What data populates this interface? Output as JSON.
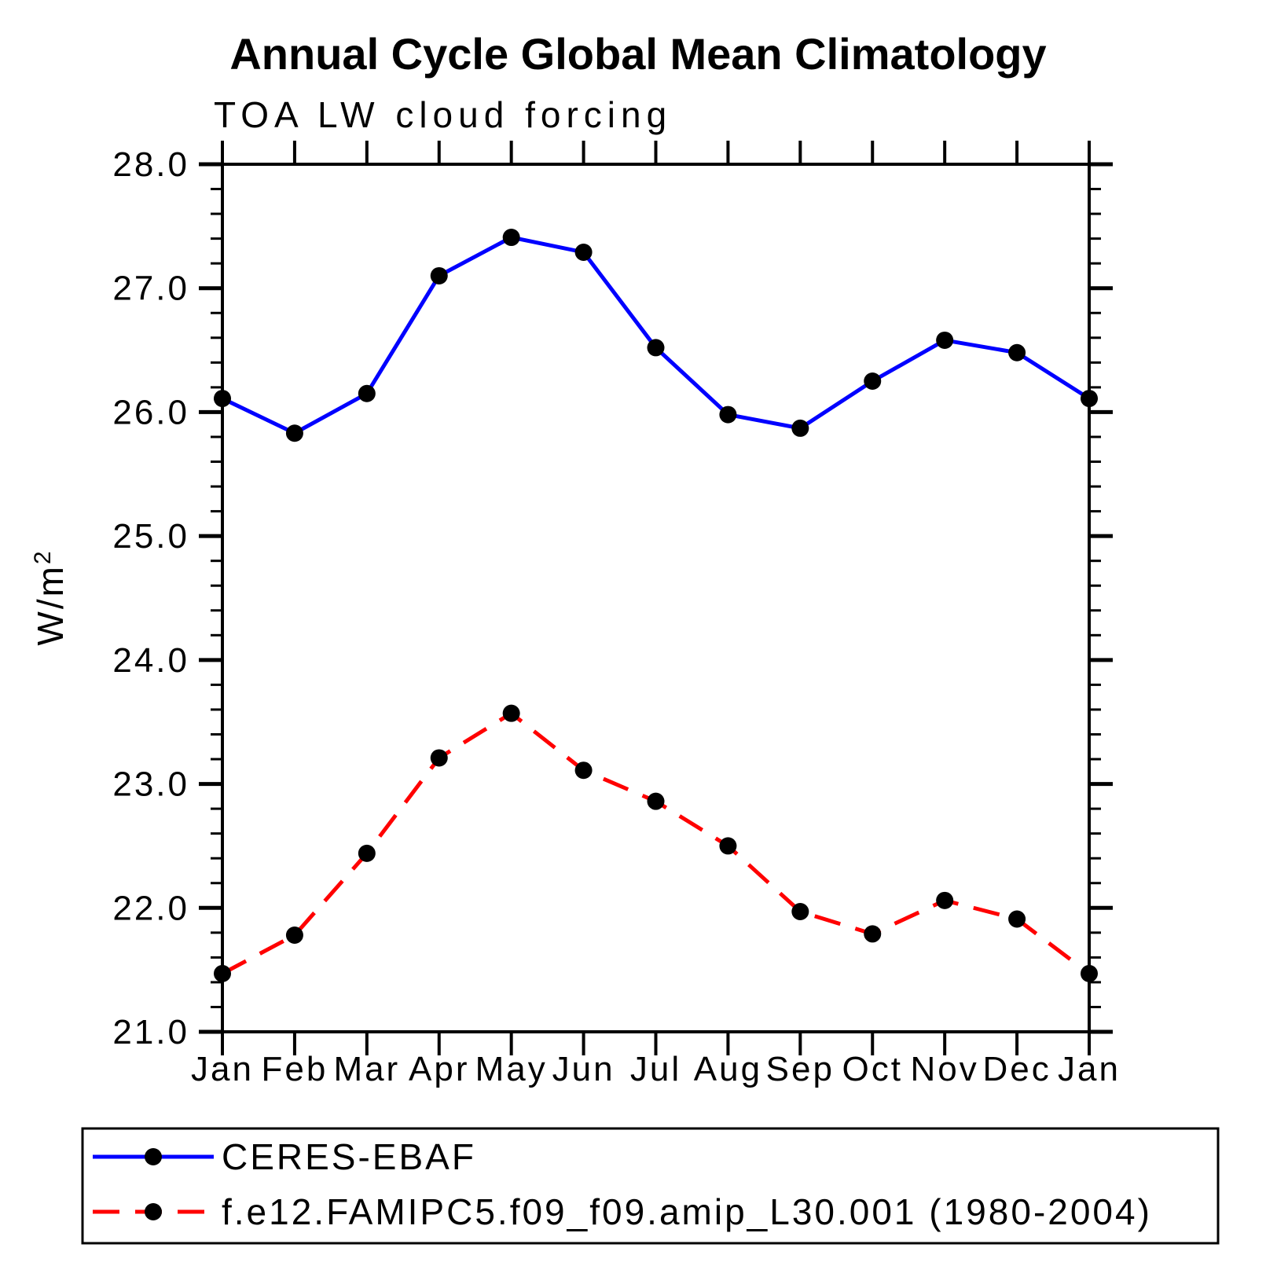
{
  "page": {
    "background": "#ffffff"
  },
  "chart_data": {
    "type": "line",
    "title": "Annual Cycle Global Mean Climatology",
    "subtitle": "TOA LW cloud forcing",
    "ylabel_base": "W/m",
    "ylabel_exp": "2",
    "categories": [
      "Jan",
      "Feb",
      "Mar",
      "Apr",
      "May",
      "Jun",
      "Jul",
      "Aug",
      "Sep",
      "Oct",
      "Nov",
      "Dec",
      "Jan"
    ],
    "ylim": [
      21.0,
      28.0
    ],
    "ytick_major_step": 1.0,
    "ytick_minor_step": 0.2,
    "ytick_labels": [
      "21.0",
      "22.0",
      "23.0",
      "24.0",
      "25.0",
      "26.0",
      "27.0",
      "28.0"
    ],
    "grid": false,
    "legend_position": "bottom-left",
    "marker": {
      "shape": "circle",
      "color": "#000000"
    },
    "frame_color": "#000000",
    "series": [
      {
        "name": "CERES-EBAF",
        "color": "#0000ff",
        "line_style": "solid",
        "values": [
          26.11,
          25.83,
          26.15,
          27.1,
          27.41,
          27.29,
          26.52,
          25.98,
          25.87,
          26.25,
          26.58,
          26.48,
          26.11
        ]
      },
      {
        "name": "f.e12.FAMIPC5.f09_f09.amip_L30.001 (1980-2004)",
        "color": "#ff0000",
        "line_style": "dashed",
        "values": [
          21.47,
          21.78,
          22.44,
          23.21,
          23.57,
          23.11,
          22.86,
          22.5,
          21.97,
          21.79,
          22.06,
          21.91,
          21.47
        ]
      }
    ]
  }
}
